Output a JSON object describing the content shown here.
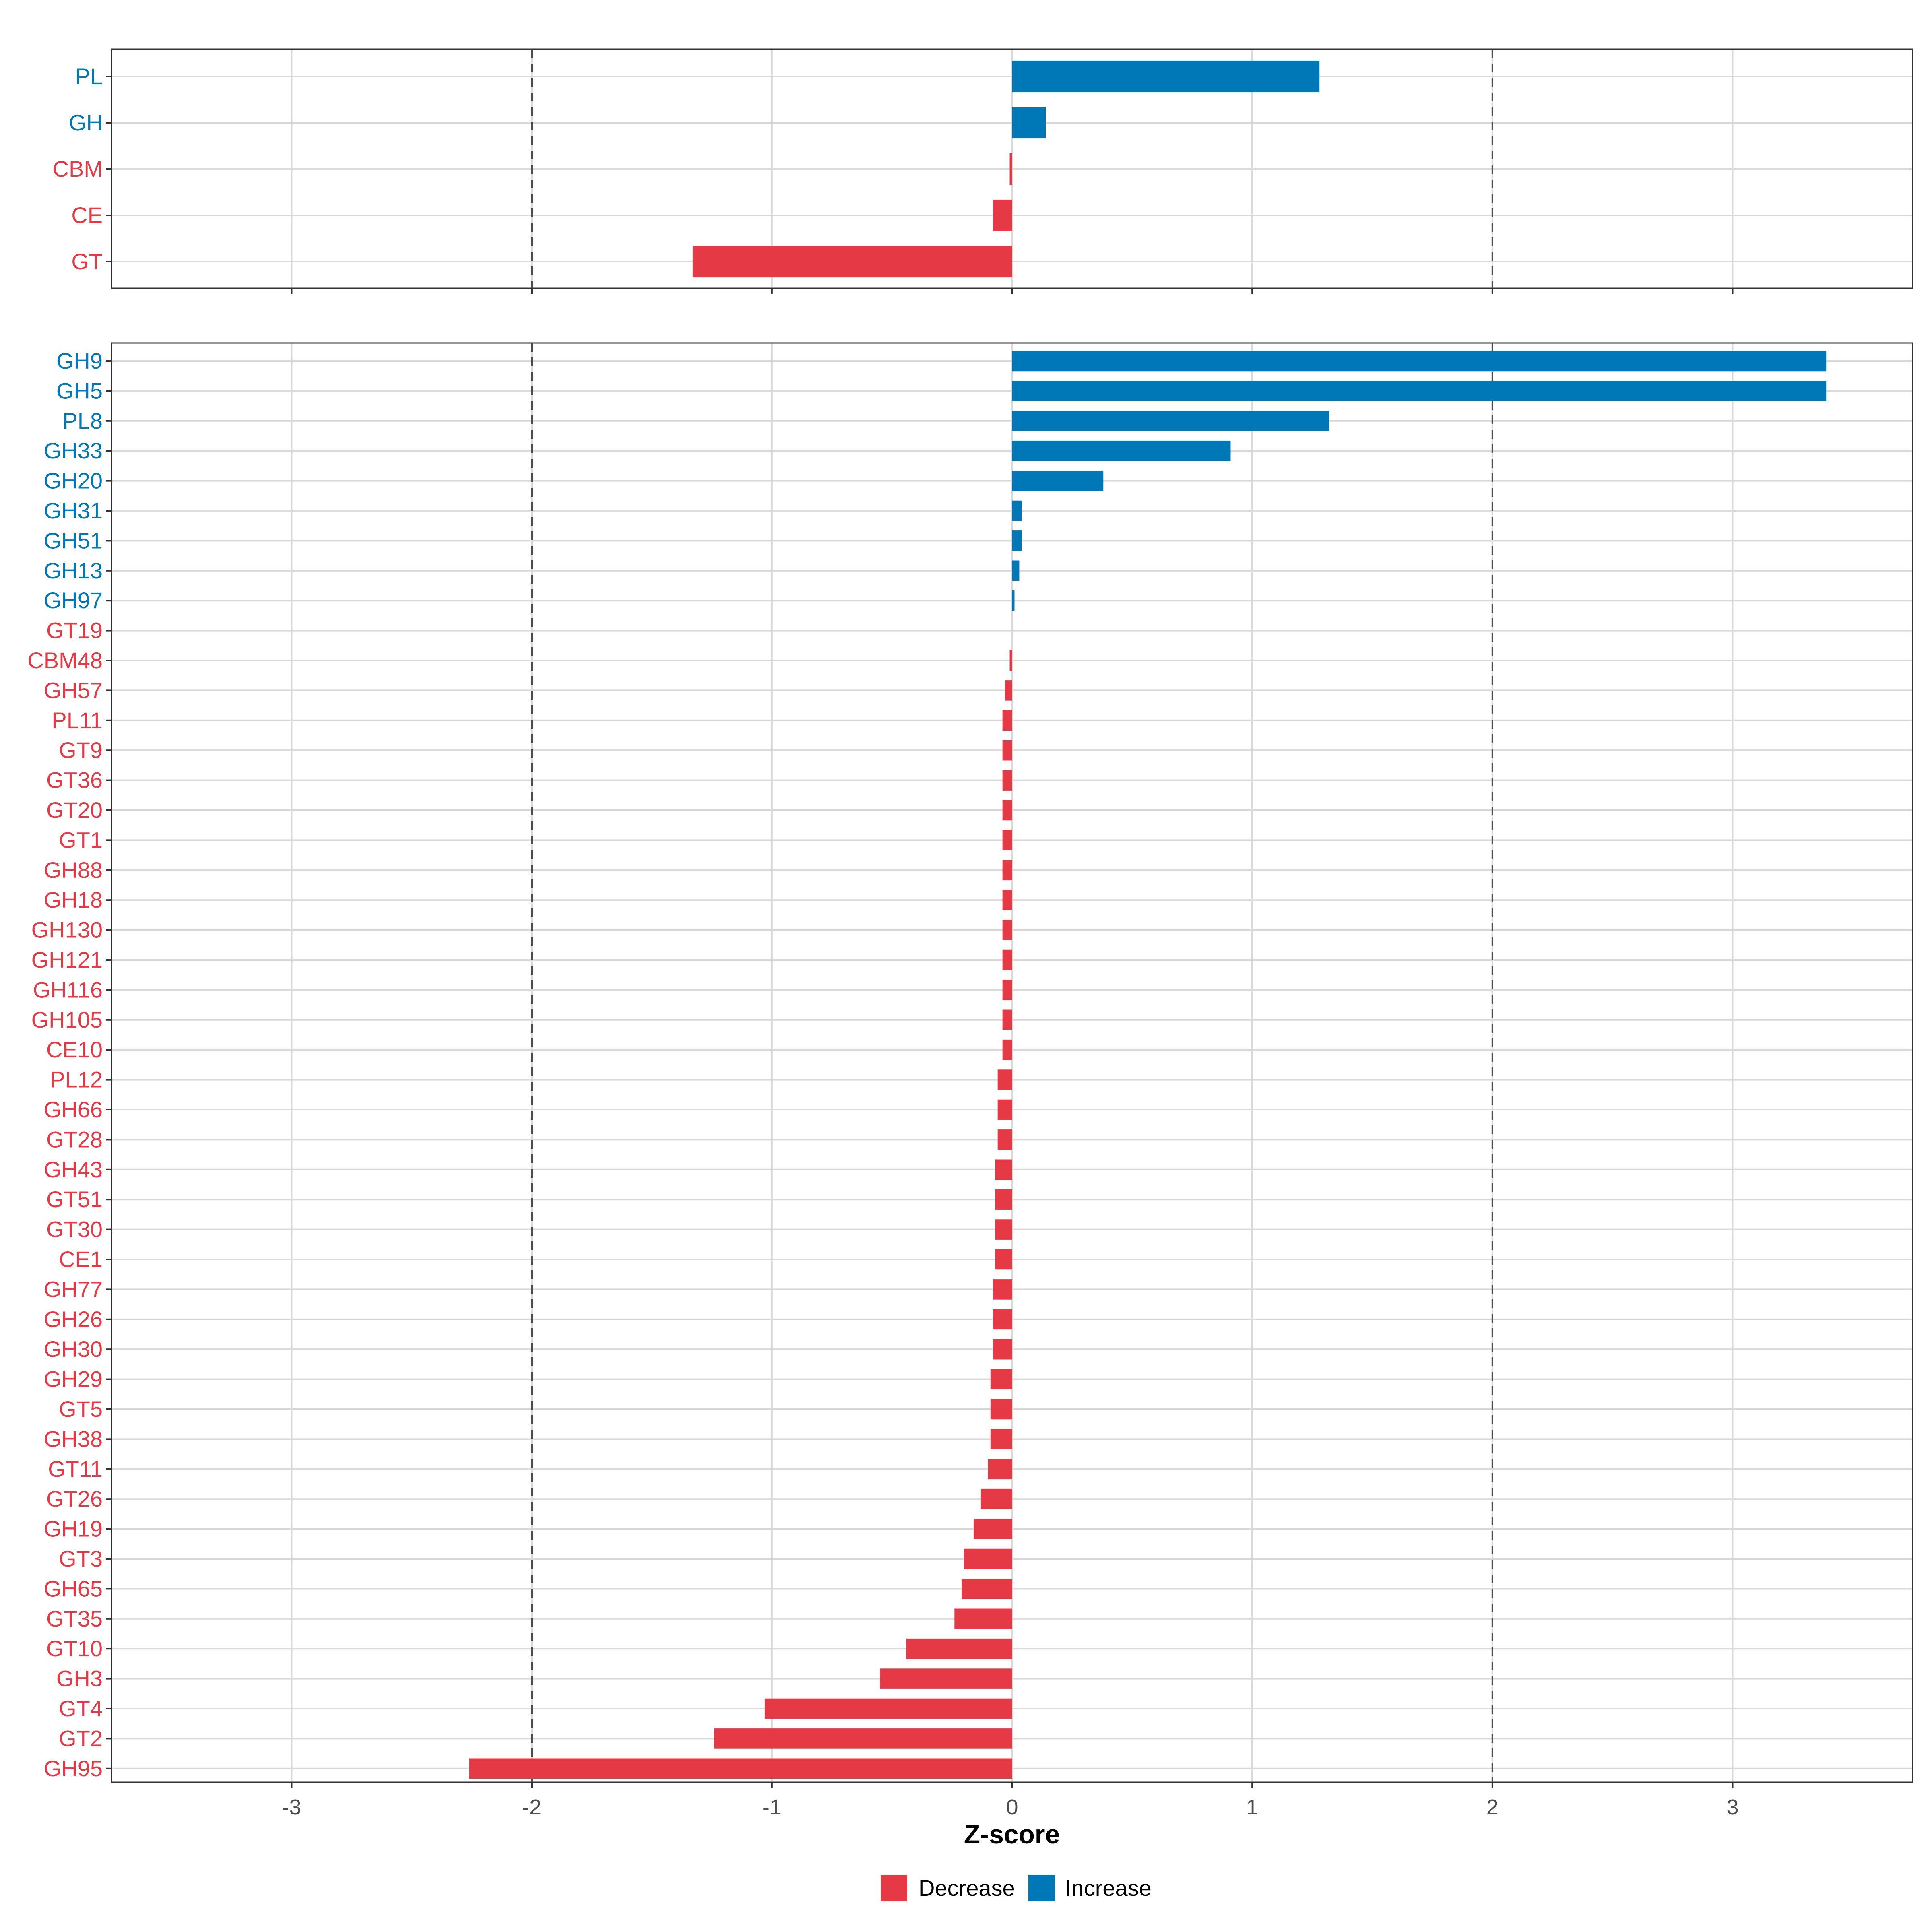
{
  "colors": {
    "decrease": "#E63946",
    "increase": "#0077B6",
    "grid": "#D9D9D9",
    "threshold": "#4D4D4D",
    "panel_border": "#333333"
  },
  "chart_data": [
    {
      "type": "bar",
      "orientation": "horizontal",
      "panel": "top",
      "categories": [
        "PL",
        "GH",
        "CBM",
        "CE",
        "GT"
      ],
      "values": [
        1.28,
        0.14,
        -0.01,
        -0.08,
        -1.33
      ],
      "direction": [
        "Increase",
        "Increase",
        "Decrease",
        "Decrease",
        "Decrease"
      ],
      "xlim": [
        -3.75,
        3.75
      ],
      "thresholds": [
        -2,
        2
      ],
      "grid": true
    },
    {
      "type": "bar",
      "orientation": "horizontal",
      "panel": "bottom",
      "categories": [
        "GH9",
        "GH5",
        "PL8",
        "GH33",
        "GH20",
        "GH31",
        "GH51",
        "GH13",
        "GH97",
        "GT19",
        "CBM48",
        "GH57",
        "PL11",
        "GT9",
        "GT36",
        "GT20",
        "GT1",
        "GH88",
        "GH18",
        "GH130",
        "GH121",
        "GH116",
        "GH105",
        "CE10",
        "PL12",
        "GH66",
        "GT28",
        "GH43",
        "GT51",
        "GT30",
        "CE1",
        "GH77",
        "GH26",
        "GH30",
        "GH29",
        "GT5",
        "GH38",
        "GT11",
        "GT26",
        "GH19",
        "GT3",
        "GH65",
        "GT35",
        "GT10",
        "GH3",
        "GT4",
        "GT2",
        "GH95"
      ],
      "values": [
        3.39,
        3.39,
        1.32,
        0.91,
        0.38,
        0.04,
        0.04,
        0.03,
        0.01,
        0.0,
        -0.01,
        -0.03,
        -0.04,
        -0.04,
        -0.04,
        -0.04,
        -0.04,
        -0.04,
        -0.04,
        -0.04,
        -0.04,
        -0.04,
        -0.04,
        -0.04,
        -0.06,
        -0.06,
        -0.06,
        -0.07,
        -0.07,
        -0.07,
        -0.07,
        -0.08,
        -0.08,
        -0.08,
        -0.09,
        -0.09,
        -0.09,
        -0.1,
        -0.13,
        -0.16,
        -0.2,
        -0.21,
        -0.24,
        -0.44,
        -0.55,
        -1.03,
        -1.24,
        -2.26
      ],
      "direction": [
        "Increase",
        "Increase",
        "Increase",
        "Increase",
        "Increase",
        "Increase",
        "Increase",
        "Increase",
        "Increase",
        "Decrease",
        "Decrease",
        "Decrease",
        "Decrease",
        "Decrease",
        "Decrease",
        "Decrease",
        "Decrease",
        "Decrease",
        "Decrease",
        "Decrease",
        "Decrease",
        "Decrease",
        "Decrease",
        "Decrease",
        "Decrease",
        "Decrease",
        "Decrease",
        "Decrease",
        "Decrease",
        "Decrease",
        "Decrease",
        "Decrease",
        "Decrease",
        "Decrease",
        "Decrease",
        "Decrease",
        "Decrease",
        "Decrease",
        "Decrease",
        "Decrease",
        "Decrease",
        "Decrease",
        "Decrease",
        "Decrease",
        "Decrease",
        "Decrease",
        "Decrease",
        "Decrease"
      ],
      "xlim": [
        -3.75,
        3.75
      ],
      "thresholds": [
        -2,
        2
      ],
      "grid": true,
      "xticks": [
        -3,
        -2,
        -1,
        0,
        1,
        2,
        3
      ],
      "xtick_labels": [
        "-3",
        "-2",
        "-1",
        "0",
        "1",
        "2",
        "3"
      ],
      "xlabel": "Z-score"
    }
  ],
  "legend": {
    "position": "bottom",
    "items": [
      {
        "label": "Decrease",
        "color": "#E63946"
      },
      {
        "label": "Increase",
        "color": "#0077B6"
      }
    ]
  }
}
